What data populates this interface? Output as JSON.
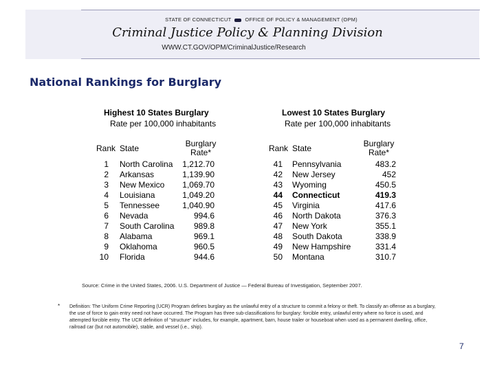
{
  "header": {
    "agency_left": "STATE OF CONNECTICUT",
    "agency_right": "OFFICE OF POLICY & MANAGEMENT (OPM)",
    "division": "Criminal Justice Policy & Planning Division",
    "url": "WWW.CT.GOV/OPM/CriminalJustice/Research"
  },
  "page_title": "National Rankings for Burglary",
  "highest": {
    "title": "Highest 10 States Burglary",
    "subtitle": "Rate per 100,000 inhabitants",
    "col_rank": "Rank",
    "col_state": "State",
    "col_rate_1": "Burglary",
    "col_rate_2": "Rate*",
    "rows": [
      {
        "rank": "1",
        "state": "North Carolina",
        "rate": "1,212.70"
      },
      {
        "rank": "2",
        "state": "Arkansas",
        "rate": "1,139.90"
      },
      {
        "rank": "3",
        "state": "New Mexico",
        "rate": "1,069.70"
      },
      {
        "rank": "4",
        "state": "Louisiana",
        "rate": "1,049.20"
      },
      {
        "rank": "5",
        "state": "Tennessee",
        "rate": "1,040.90"
      },
      {
        "rank": "6",
        "state": "Nevada",
        "rate": "994.6"
      },
      {
        "rank": "7",
        "state": "South Carolina",
        "rate": "989.8"
      },
      {
        "rank": "8",
        "state": "Alabama",
        "rate": "969.1"
      },
      {
        "rank": "9",
        "state": "Oklahoma",
        "rate": "960.5"
      },
      {
        "rank": "10",
        "state": "Florida",
        "rate": "944.6"
      }
    ]
  },
  "lowest": {
    "title": "Lowest 10 States Burglary",
    "subtitle": "Rate per 100,000 inhabitants",
    "col_rank": "Rank",
    "col_state": "State",
    "col_rate_1": "Burglary",
    "col_rate_2": "Rate*",
    "rows": [
      {
        "rank": "41",
        "state": "Pennsylvania",
        "rate": "483.2"
      },
      {
        "rank": "42",
        "state": "New Jersey",
        "rate": "452"
      },
      {
        "rank": "43",
        "state": "Wyoming",
        "rate": "450.5"
      },
      {
        "rank": "44",
        "state": "Connecticut",
        "rate": "419.3",
        "highlight": true
      },
      {
        "rank": "45",
        "state": "Virginia",
        "rate": "417.6"
      },
      {
        "rank": "46",
        "state": "North Dakota",
        "rate": "376.3"
      },
      {
        "rank": "47",
        "state": "New York",
        "rate": "355.1"
      },
      {
        "rank": "48",
        "state": "South Dakota",
        "rate": "338.9"
      },
      {
        "rank": "49",
        "state": "New Hampshire",
        "rate": "331.4"
      },
      {
        "rank": "50",
        "state": "Montana",
        "rate": "310.7"
      }
    ]
  },
  "source": "Source:  Crime in the United States, 2006. U.S. Department of Justice — Federal Bureau of Investigation, September 2007.",
  "footnote_mark": "*",
  "footnote": "Definition: The Uniform Crime Reporting (UCR) Program defines burglary as the unlawful entry of a structure to commit a felony or theft. To classify an offense as a burglary, the use of force to gain entry need not have occurred. The Program has three sub-classifications for burglary: forcible entry, unlawful entry where no force is used, and attempted forcible entry. The UCR definition of \"structure\" includes, for example, apartment, barn, house trailer or houseboat when used as a permanent dwelling, office, railroad car (but not automobile), stable, and vessel (i.e., ship).",
  "page_number": "7",
  "colors": {
    "header_band": "#eeeef6",
    "title_blue": "#1c2a6a"
  }
}
